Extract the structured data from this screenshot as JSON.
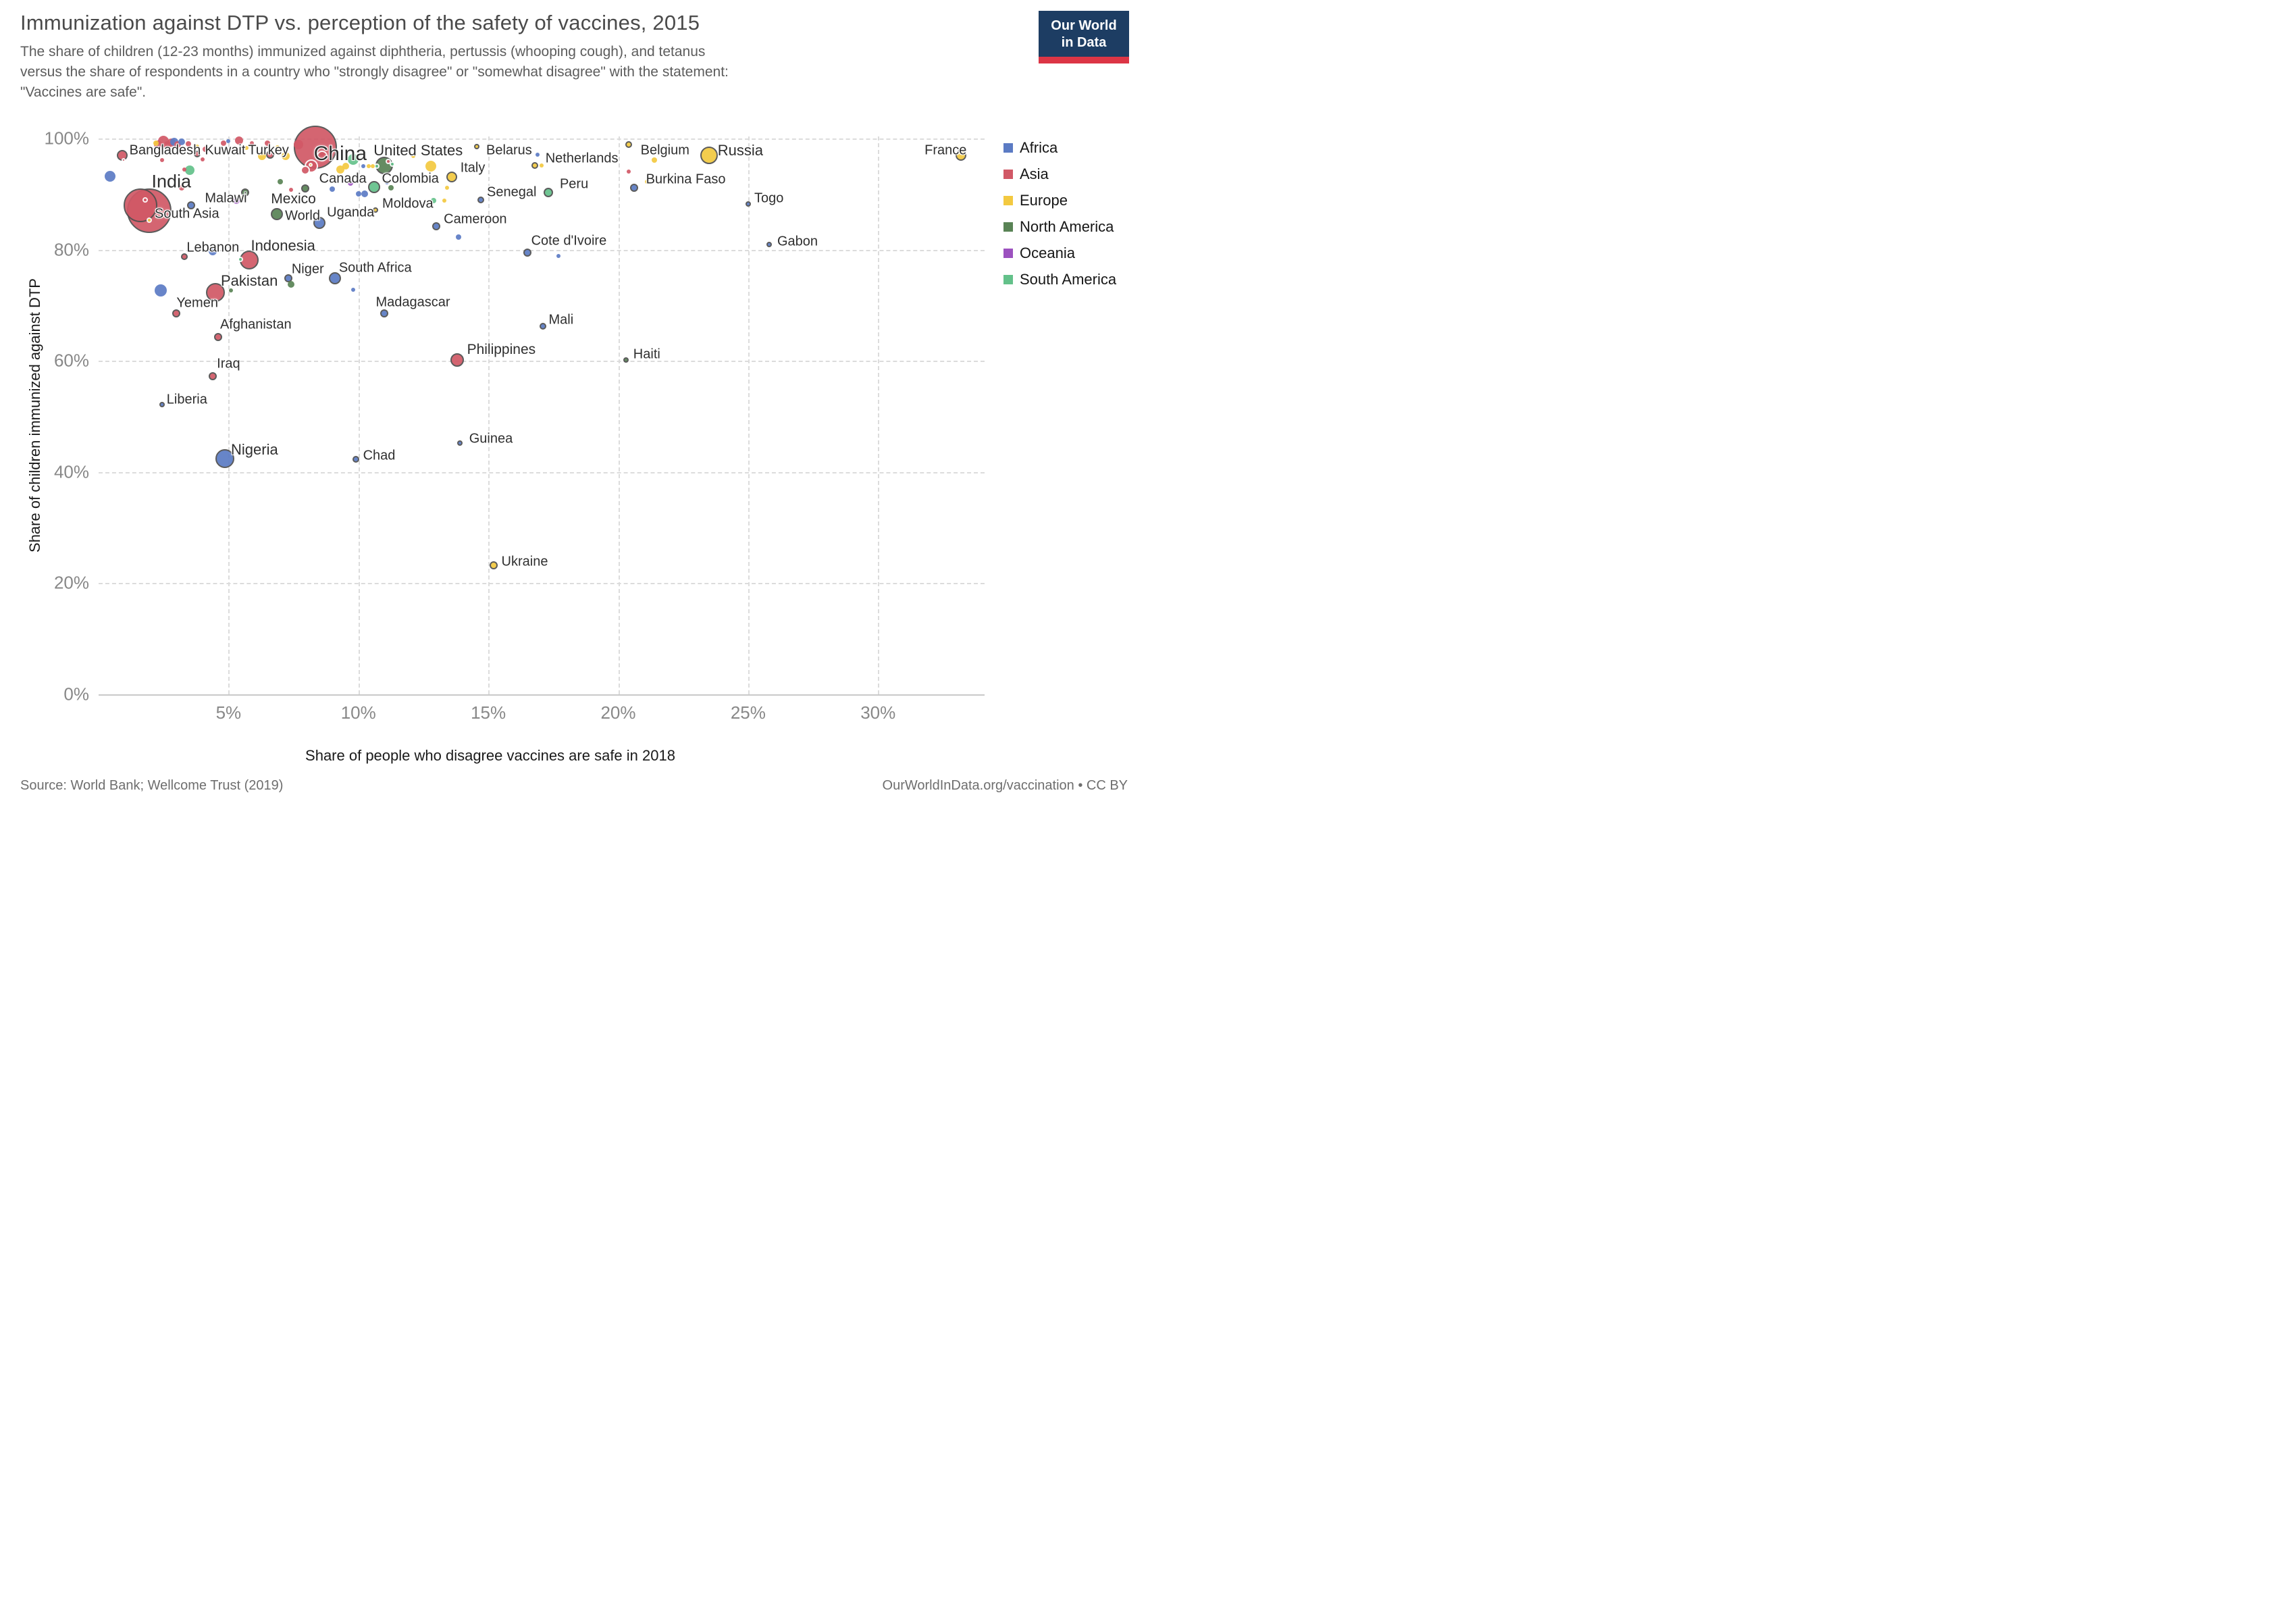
{
  "header": {
    "title": "Immunization against DTP vs. perception of the safety of vaccines, 2015",
    "subtitle_lines": [
      "The share of children (12-23 months) immunized against diphtheria, pertussis (whooping cough), and tetanus",
      "versus the share of respondents in a country who \"strongly disagree\" or \"somewhat disagree\" with the statement:",
      "\"Vaccines are safe\"."
    ],
    "logo": {
      "line1": "Our World",
      "line2": "in Data",
      "bg_color": "#1d3d63",
      "accent_color": "#dc3545"
    }
  },
  "footer": {
    "source": "Source: World Bank; Wellcome Trust (2019)",
    "license": "OurWorldInData.org/vaccination • CC BY"
  },
  "chart_data": {
    "type": "scatter",
    "title": "Immunization against DTP vs. perception of the safety of vaccines, 2015",
    "xlabel": "Share of people who disagree vaccines are safe in 2018",
    "ylabel": "Share of children immunized against DTP",
    "xlim": [
      0,
      34.1
    ],
    "ylim": [
      0,
      100.4
    ],
    "grid": true,
    "legend_position": "right",
    "x_ticks": [
      {
        "value": 5,
        "label": "5%"
      },
      {
        "value": 10,
        "label": "10%"
      },
      {
        "value": 15,
        "label": "15%"
      },
      {
        "value": 20,
        "label": "20%"
      },
      {
        "value": 25,
        "label": "25%"
      },
      {
        "value": 30,
        "label": "30%"
      }
    ],
    "y_ticks": [
      {
        "value": 0,
        "label": "0%"
      },
      {
        "value": 20,
        "label": "20%"
      },
      {
        "value": 40,
        "label": "40%"
      },
      {
        "value": 60,
        "label": "60%"
      },
      {
        "value": 80,
        "label": "80%"
      },
      {
        "value": 100,
        "label": "100%"
      }
    ],
    "continent_colors": {
      "africa": "#5b7bc4",
      "asia": "#d15866",
      "europe": "#f3c940",
      "northamerica": "#598355",
      "oceania": "#9c51bf",
      "southamerica": "#63c18a"
    },
    "legend": [
      {
        "label": "Africa",
        "color": "#5b7bc4"
      },
      {
        "label": "Asia",
        "color": "#d15866"
      },
      {
        "label": "Europe",
        "color": "#f3c940"
      },
      {
        "label": "North America",
        "color": "#598355"
      },
      {
        "label": "Oceania",
        "color": "#9c51bf"
      },
      {
        "label": "South America",
        "color": "#63c18a"
      }
    ],
    "points": [
      {
        "name": "Bangladesh",
        "continent": "asia",
        "x": 0.9,
        "y": 97.0,
        "r": 8,
        "label": {
          "x": 2.56,
          "y": 97.9,
          "fs": 20
        }
      },
      {
        "name": "Kuwait",
        "continent": "asia",
        "x": 3.8,
        "y": 97.3,
        "r": 5,
        "label": {
          "x": 4.87,
          "y": 97.9,
          "fs": 20
        }
      },
      {
        "name": "Turkey",
        "continent": "asia",
        "x": 6.6,
        "y": 97.1,
        "r": 6,
        "label": {
          "x": 6.54,
          "y": 97.9,
          "fs": 20
        }
      },
      {
        "name": "China",
        "continent": "asia",
        "x": 8.35,
        "y": 98.4,
        "r": 32,
        "label": {
          "x": 9.3,
          "y": 97.2,
          "fs": 30
        }
      },
      {
        "name": "United States",
        "continent": "northamerica",
        "x": 11.0,
        "y": 95.2,
        "r": 13,
        "label": {
          "x": 12.3,
          "y": 97.8,
          "fs": 22
        }
      },
      {
        "name": "Belarus",
        "continent": "europe",
        "x": 14.55,
        "y": 98.6,
        "r": 4,
        "label": {
          "x": 15.8,
          "y": 97.8,
          "fs": 20
        }
      },
      {
        "name": "Netherlands",
        "continent": "europe",
        "x": 16.8,
        "y": 95.2,
        "r": 5,
        "label": {
          "x": 18.6,
          "y": 96.4,
          "fs": 20
        }
      },
      {
        "name": "Belgium",
        "continent": "europe",
        "x": 20.4,
        "y": 99.0,
        "r": 5,
        "label": {
          "x": 21.8,
          "y": 97.8,
          "fs": 20
        }
      },
      {
        "name": "Russia",
        "continent": "europe",
        "x": 23.5,
        "y": 97.0,
        "r": 13,
        "label": {
          "x": 24.7,
          "y": 97.8,
          "fs": 22
        }
      },
      {
        "name": "France",
        "continent": "europe",
        "x": 33.2,
        "y": 97.0,
        "r": 8,
        "label": {
          "x": 32.6,
          "y": 97.8,
          "fs": 20
        }
      },
      {
        "name": "India",
        "continent": "asia",
        "x": 1.6,
        "y": 88.0,
        "r": 25,
        "label": {
          "x": 2.8,
          "y": 92.3,
          "fs": 27
        }
      },
      {
        "name": "South Asia",
        "continent": "asia",
        "x": 1.95,
        "y": 87.0,
        "r": 33,
        "label": {
          "x": 3.4,
          "y": 86.4,
          "fs": 20
        }
      },
      {
        "name": "Malawi",
        "continent": "africa",
        "x": 3.55,
        "y": 88.0,
        "r": 6,
        "label": {
          "x": 4.9,
          "y": 89.2,
          "fs": 20
        }
      },
      {
        "name": "Mexico",
        "continent": "northamerica",
        "x": 5.65,
        "y": 90.3,
        "r": 6,
        "label": {
          "x": 7.5,
          "y": 89.1,
          "fs": 21
        }
      },
      {
        "name": "World",
        "continent": "northamerica",
        "x": 6.85,
        "y": 86.4,
        "r": 9,
        "label": {
          "x": 7.85,
          "y": 86.1,
          "fs": 20
        }
      },
      {
        "name": "Canada",
        "continent": "northamerica",
        "x": 7.95,
        "y": 91.1,
        "r": 6,
        "label": {
          "x": 9.4,
          "y": 92.7,
          "fs": 20
        }
      },
      {
        "name": "Uganda",
        "continent": "africa",
        "x": 8.5,
        "y": 84.8,
        "r": 9,
        "label": {
          "x": 9.7,
          "y": 86.7,
          "fs": 20
        }
      },
      {
        "name": "Colombia",
        "continent": "southamerica",
        "x": 10.6,
        "y": 91.3,
        "r": 9,
        "label": {
          "x": 12.0,
          "y": 92.7,
          "fs": 20
        }
      },
      {
        "name": "Moldova",
        "continent": "europe",
        "x": 10.65,
        "y": 87.1,
        "r": 4,
        "label": {
          "x": 11.9,
          "y": 88.2,
          "fs": 20
        }
      },
      {
        "name": "Italy",
        "continent": "europe",
        "x": 13.6,
        "y": 93.1,
        "r": 8,
        "label": {
          "x": 14.4,
          "y": 94.7,
          "fs": 20
        }
      },
      {
        "name": "Senegal",
        "continent": "africa",
        "x": 14.7,
        "y": 89.0,
        "r": 5,
        "label": {
          "x": 15.9,
          "y": 90.3,
          "fs": 20
        }
      },
      {
        "name": "Peru",
        "continent": "southamerica",
        "x": 17.3,
        "y": 90.3,
        "r": 7,
        "label": {
          "x": 18.3,
          "y": 91.8,
          "fs": 20
        }
      },
      {
        "name": "Cameroon",
        "continent": "africa",
        "x": 13.0,
        "y": 84.2,
        "r": 6,
        "label": {
          "x": 14.5,
          "y": 85.5,
          "fs": 20
        }
      },
      {
        "name": "Cote d'Ivoire",
        "continent": "africa",
        "x": 16.5,
        "y": 79.5,
        "r": 6,
        "label": {
          "x": 18.1,
          "y": 81.6,
          "fs": 20
        }
      },
      {
        "name": "Gabon",
        "continent": "africa",
        "x": 25.8,
        "y": 81.0,
        "r": 4,
        "label": {
          "x": 26.9,
          "y": 81.4,
          "fs": 20
        }
      },
      {
        "name": "Togo",
        "continent": "africa",
        "x": 25.0,
        "y": 88.2,
        "r": 4,
        "label": {
          "x": 25.8,
          "y": 89.2,
          "fs": 20
        }
      },
      {
        "name": "Burkina Faso",
        "continent": "africa",
        "x": 20.6,
        "y": 91.2,
        "r": 6,
        "label": {
          "x": 22.6,
          "y": 92.6,
          "fs": 20
        }
      },
      {
        "name": "Lebanon",
        "continent": "asia",
        "x": 3.3,
        "y": 78.8,
        "r": 5,
        "label": {
          "x": 4.4,
          "y": 80.3,
          "fs": 20
        }
      },
      {
        "name": "Indonesia",
        "continent": "asia",
        "x": 5.8,
        "y": 78.1,
        "r": 14,
        "label": {
          "x": 7.1,
          "y": 80.7,
          "fs": 22
        }
      },
      {
        "name": "Pakistan",
        "continent": "asia",
        "x": 4.5,
        "y": 72.3,
        "r": 14,
        "label": {
          "x": 5.8,
          "y": 74.4,
          "fs": 22
        }
      },
      {
        "name": "Niger",
        "continent": "africa",
        "x": 7.3,
        "y": 74.9,
        "r": 6,
        "label": {
          "x": 8.05,
          "y": 76.4,
          "fs": 20
        }
      },
      {
        "name": "South Africa",
        "continent": "africa",
        "x": 9.1,
        "y": 74.9,
        "r": 9,
        "label": {
          "x": 10.65,
          "y": 76.7,
          "fs": 20
        }
      },
      {
        "name": "Yemen",
        "continent": "asia",
        "x": 3.0,
        "y": 68.6,
        "r": 6,
        "label": {
          "x": 3.8,
          "y": 70.4,
          "fs": 20
        }
      },
      {
        "name": "Madagascar",
        "continent": "africa",
        "x": 11.0,
        "y": 68.6,
        "r": 6,
        "label": {
          "x": 12.1,
          "y": 70.5,
          "fs": 20
        }
      },
      {
        "name": "Afghanistan",
        "continent": "asia",
        "x": 4.6,
        "y": 64.3,
        "r": 6,
        "label": {
          "x": 6.05,
          "y": 66.5,
          "fs": 20
        }
      },
      {
        "name": "Iraq",
        "continent": "asia",
        "x": 4.4,
        "y": 57.3,
        "r": 6,
        "label": {
          "x": 5.0,
          "y": 59.4,
          "fs": 20
        }
      },
      {
        "name": "Liberia",
        "continent": "africa",
        "x": 2.45,
        "y": 52.2,
        "r": 4,
        "label": {
          "x": 3.4,
          "y": 53.0,
          "fs": 20
        }
      },
      {
        "name": "Nigeria",
        "continent": "africa",
        "x": 4.85,
        "y": 42.4,
        "r": 14,
        "label": {
          "x": 6.0,
          "y": 44.0,
          "fs": 22
        }
      },
      {
        "name": "Chad",
        "continent": "africa",
        "x": 9.9,
        "y": 42.3,
        "r": 5,
        "label": {
          "x": 10.8,
          "y": 42.9,
          "fs": 20
        }
      },
      {
        "name": "Guinea",
        "continent": "africa",
        "x": 13.9,
        "y": 45.2,
        "r": 4,
        "label": {
          "x": 15.1,
          "y": 46.0,
          "fs": 20
        }
      },
      {
        "name": "Philippines",
        "continent": "asia",
        "x": 13.8,
        "y": 60.2,
        "r": 10,
        "label": {
          "x": 15.5,
          "y": 62.0,
          "fs": 21
        }
      },
      {
        "name": "Mali",
        "continent": "africa",
        "x": 17.1,
        "y": 66.2,
        "r": 5,
        "label": {
          "x": 17.8,
          "y": 67.3,
          "fs": 20
        }
      },
      {
        "name": "Haiti",
        "continent": "northamerica",
        "x": 20.3,
        "y": 60.2,
        "r": 4,
        "label": {
          "x": 21.1,
          "y": 61.1,
          "fs": 20
        }
      },
      {
        "name": "Ukraine",
        "continent": "europe",
        "x": 15.2,
        "y": 23.2,
        "r": 6,
        "label": {
          "x": 16.4,
          "y": 23.8,
          "fs": 20
        }
      }
    ],
    "background_points": [
      {
        "x": 2.2,
        "y": 99.2,
        "c": "europe",
        "r": 4
      },
      {
        "x": 2.3,
        "y": 99.0,
        "c": "asia",
        "r": 6
      },
      {
        "x": 2.5,
        "y": 99.6,
        "c": "asia",
        "r": 8
      },
      {
        "x": 2.65,
        "y": 98.8,
        "c": "asia",
        "r": 6
      },
      {
        "x": 2.8,
        "y": 99.3,
        "c": "asia",
        "r": 6
      },
      {
        "x": 2.9,
        "y": 99.4,
        "c": "africa",
        "r": 6
      },
      {
        "x": 3.05,
        "y": 99.0,
        "c": "asia",
        "r": 5
      },
      {
        "x": 3.2,
        "y": 99.4,
        "c": "africa",
        "r": 5
      },
      {
        "x": 3.45,
        "y": 99.1,
        "c": "asia",
        "r": 4
      },
      {
        "x": 3.8,
        "y": 98.6,
        "c": "europe",
        "r": 3
      },
      {
        "x": 4.1,
        "y": 98.1,
        "c": "asia",
        "r": 4
      },
      {
        "x": 2.45,
        "y": 96.1,
        "c": "asia",
        "r": 3
      },
      {
        "x": 4.0,
        "y": 96.3,
        "c": "asia",
        "r": 3
      },
      {
        "x": 4.9,
        "y": 98.1,
        "c": "europe",
        "r": 3
      },
      {
        "x": 4.8,
        "y": 99.2,
        "c": "asia",
        "r": 4
      },
      {
        "x": 5.0,
        "y": 99.6,
        "c": "africa",
        "r": 3
      },
      {
        "x": 5.4,
        "y": 99.7,
        "c": "asia",
        "r": 6
      },
      {
        "x": 5.7,
        "y": 98.3,
        "c": "europe",
        "r": 3
      },
      {
        "x": 5.9,
        "y": 99.2,
        "c": "asia",
        "r": 3
      },
      {
        "x": 6.3,
        "y": 96.9,
        "c": "europe",
        "r": 6
      },
      {
        "x": 6.5,
        "y": 99.2,
        "c": "asia",
        "r": 4
      },
      {
        "x": 6.9,
        "y": 98.5,
        "c": "europe",
        "r": 3
      },
      {
        "x": 7.2,
        "y": 96.9,
        "c": "europe",
        "r": 6
      },
      {
        "x": 7.7,
        "y": 99.0,
        "c": "asia",
        "r": 7
      },
      {
        "x": 0.45,
        "y": 93.2,
        "c": "africa",
        "r": 8
      },
      {
        "x": 3.5,
        "y": 94.3,
        "c": "southamerica",
        "r": 7
      },
      {
        "x": 3.3,
        "y": 94.4,
        "c": "asia",
        "r": 3
      },
      {
        "x": 3.2,
        "y": 91.2,
        "c": "asia",
        "r": 4
      },
      {
        "x": 5.3,
        "y": 88.8,
        "c": "oceania",
        "r": 5
      },
      {
        "x": 5.55,
        "y": 89.5,
        "c": "europe",
        "r": 3
      },
      {
        "x": 7.0,
        "y": 92.3,
        "c": "northamerica",
        "r": 4
      },
      {
        "x": 7.4,
        "y": 90.8,
        "c": "asia",
        "r": 3
      },
      {
        "x": 9.0,
        "y": 90.9,
        "c": "africa",
        "r": 4
      },
      {
        "x": 9.7,
        "y": 92.0,
        "c": "oceania",
        "r": 4
      },
      {
        "x": 10.0,
        "y": 90.1,
        "c": "africa",
        "r": 4
      },
      {
        "x": 10.25,
        "y": 90.1,
        "c": "africa",
        "r": 5
      },
      {
        "x": 11.1,
        "y": 92.1,
        "c": "africa",
        "r": 3
      },
      {
        "x": 11.25,
        "y": 91.2,
        "c": "northamerica",
        "r": 4
      },
      {
        "x": 12.1,
        "y": 96.9,
        "c": "europe",
        "r": 3
      },
      {
        "x": 12.8,
        "y": 95.1,
        "c": "europe",
        "r": 8
      },
      {
        "x": 13.4,
        "y": 91.2,
        "c": "europe",
        "r": 3
      },
      {
        "x": 12.9,
        "y": 88.9,
        "c": "southamerica",
        "r": 4
      },
      {
        "x": 13.3,
        "y": 88.9,
        "c": "europe",
        "r": 3
      },
      {
        "x": 13.85,
        "y": 82.3,
        "c": "africa",
        "r": 4
      },
      {
        "x": 9.3,
        "y": 94.4,
        "c": "europe",
        "r": 6
      },
      {
        "x": 9.5,
        "y": 95.0,
        "c": "europe",
        "r": 5
      },
      {
        "x": 9.8,
        "y": 96.3,
        "c": "southamerica",
        "r": 8
      },
      {
        "x": 10.2,
        "y": 95.0,
        "c": "africa",
        "r": 3
      },
      {
        "x": 10.4,
        "y": 95.0,
        "c": "europe",
        "r": 3
      },
      {
        "x": 10.55,
        "y": 95.0,
        "c": "europe",
        "r": 3
      },
      {
        "x": 16.9,
        "y": 97.1,
        "c": "africa",
        "r": 3
      },
      {
        "x": 17.05,
        "y": 95.2,
        "c": "europe",
        "r": 3
      },
      {
        "x": 20.4,
        "y": 94.1,
        "c": "asia",
        "r": 3
      },
      {
        "x": 21.4,
        "y": 96.1,
        "c": "europe",
        "r": 4
      },
      {
        "x": 21.1,
        "y": 92.3,
        "c": "europe",
        "r": 3
      },
      {
        "x": 17.7,
        "y": 78.9,
        "c": "africa",
        "r": 3
      },
      {
        "x": 4.4,
        "y": 79.7,
        "c": "africa",
        "r": 6
      },
      {
        "x": 2.4,
        "y": 72.7,
        "c": "africa",
        "r": 9
      },
      {
        "x": 5.1,
        "y": 72.7,
        "c": "northamerica",
        "r": 3
      },
      {
        "x": 7.4,
        "y": 73.8,
        "c": "northamerica",
        "r": 5
      },
      {
        "x": 9.8,
        "y": 72.8,
        "c": "africa",
        "r": 3
      },
      {
        "x": 8.2,
        "y": 95.0,
        "c": "asia",
        "r": 10,
        "ring": true
      },
      {
        "x": 7.95,
        "y": 94.3,
        "c": "asia",
        "r": 7,
        "ring": true
      },
      {
        "x": 8.15,
        "y": 95.3,
        "c": "europe",
        "r": 3,
        "ring": true
      },
      {
        "x": 8.6,
        "y": 96.9,
        "c": "asia",
        "r": 8,
        "ring": true
      },
      {
        "x": 11.15,
        "y": 95.9,
        "c": "asia",
        "r": 4,
        "ring": true
      },
      {
        "x": 11.3,
        "y": 95.4,
        "c": "southamerica",
        "r": 4,
        "ring": true
      },
      {
        "x": 10.7,
        "y": 95.0,
        "c": "southamerica",
        "r": 4,
        "ring": true
      },
      {
        "x": 0.95,
        "y": 96.2,
        "c": "asia",
        "r": 3,
        "ring": true
      },
      {
        "x": 1.8,
        "y": 89.0,
        "c": "asia",
        "r": 4,
        "ring": true
      },
      {
        "x": 1.95,
        "y": 85.3,
        "c": "europe",
        "r": 4,
        "ring": true
      },
      {
        "x": 5.45,
        "y": 78.3,
        "c": "southamerica",
        "r": 4,
        "ring": true
      }
    ]
  }
}
